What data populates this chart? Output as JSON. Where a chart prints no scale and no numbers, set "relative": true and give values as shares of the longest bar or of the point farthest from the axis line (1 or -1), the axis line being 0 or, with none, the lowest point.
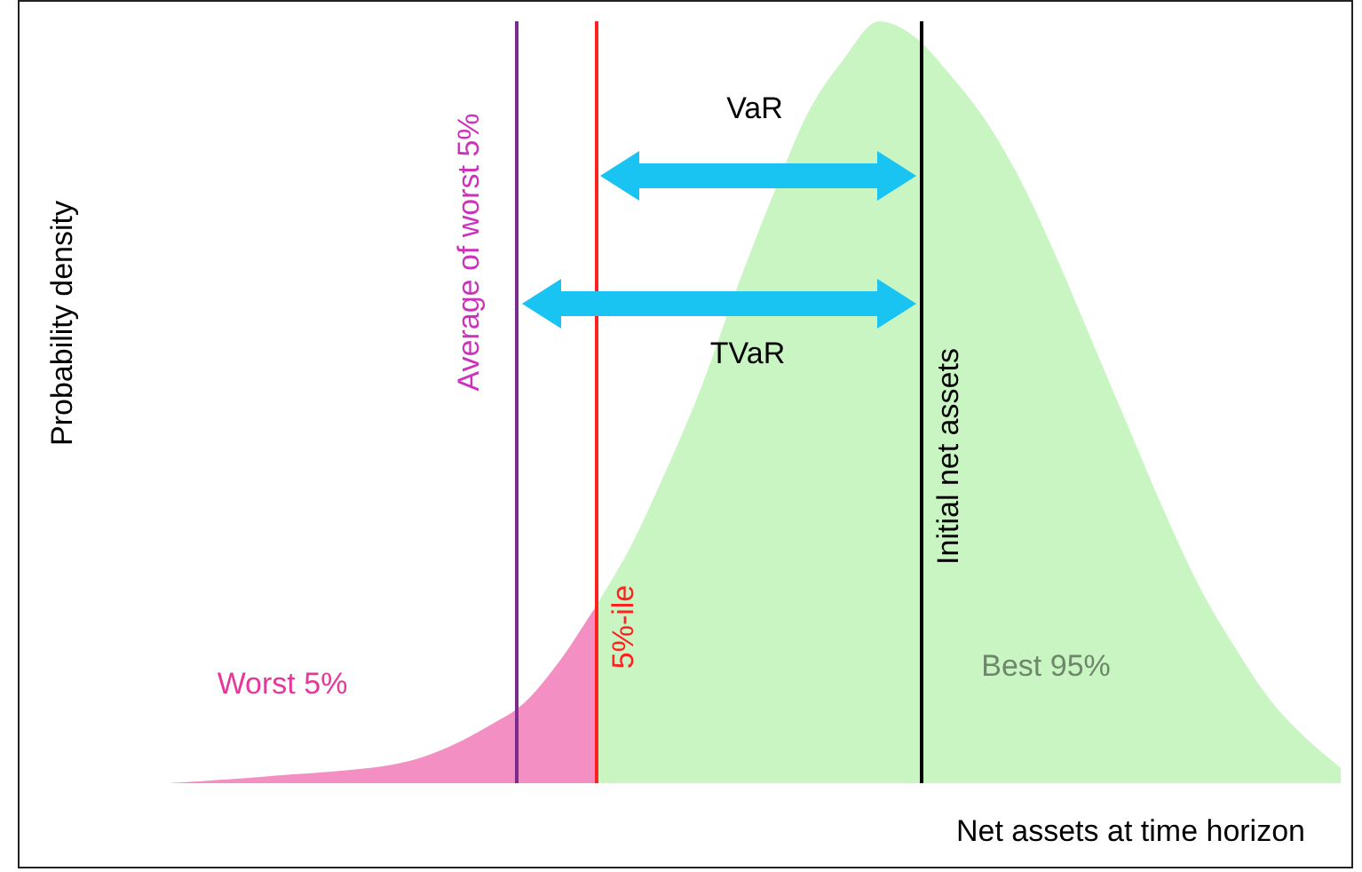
{
  "chart_data": {
    "type": "area",
    "relative": true,
    "xlabel": "Net assets at time horizon",
    "ylabel": "Probability density",
    "categories": [
      null,
      null,
      null,
      null,
      null,
      null,
      null,
      null,
      null,
      null,
      null,
      null,
      null,
      null,
      null,
      null,
      null,
      null,
      null,
      null,
      null,
      null,
      null,
      null,
      null,
      null,
      null,
      null,
      null,
      null,
      null,
      null,
      null,
      null
    ],
    "series": [
      {
        "name": "Worst 5%",
        "color": "#f48fc4",
        "values": [
          0,
          0.003,
          0.006,
          0.01,
          0.013,
          0.017,
          0.022,
          0.032,
          0.05,
          0.075,
          0.105,
          0.16,
          0.23,
          null,
          null,
          null,
          null,
          null,
          null,
          null,
          null,
          null,
          null,
          null,
          null,
          null,
          null,
          null,
          null,
          null,
          null,
          null,
          null,
          null
        ]
      },
      {
        "name": "Best 95%",
        "color": "#c8f5c2",
        "values": [
          null,
          null,
          null,
          null,
          null,
          null,
          null,
          null,
          null,
          null,
          null,
          null,
          0.23,
          0.31,
          0.41,
          0.52,
          0.65,
          0.77,
          0.88,
          0.95,
          1,
          0.98,
          0.93,
          0.87,
          0.79,
          0.69,
          0.58,
          0.47,
          0.36,
          0.26,
          0.18,
          0.11,
          0.06,
          0.02
        ]
      }
    ],
    "annotations": [
      "Average of worst 5%",
      "5%-ile",
      "Initial net assets",
      "VaR",
      "TVaR"
    ],
    "legend": false
  }
}
